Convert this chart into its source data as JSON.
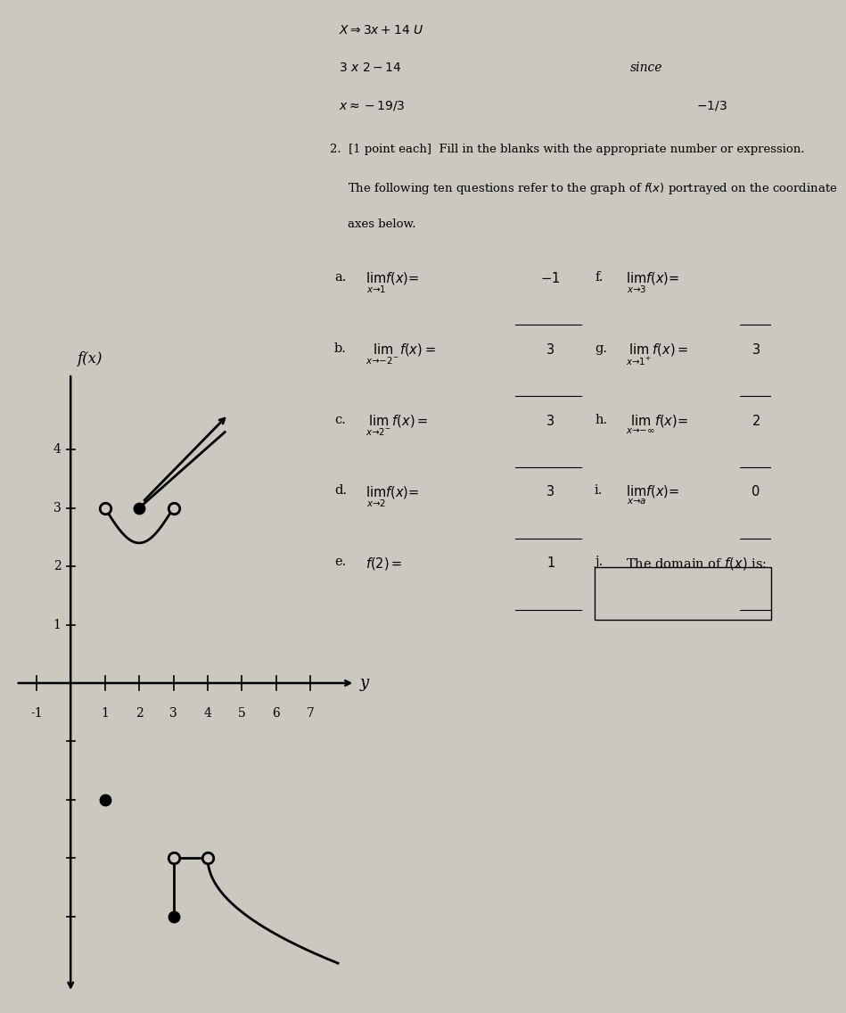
{
  "bg_color": "#ccc8c0",
  "graph_open_circles": [
    [
      1,
      3
    ],
    [
      3,
      3
    ],
    [
      3,
      -3
    ],
    [
      4,
      -3
    ]
  ],
  "graph_closed_circles": [
    [
      2,
      3
    ],
    [
      3,
      -4
    ],
    [
      1,
      -2
    ]
  ],
  "xlim": [
    -1.8,
    8.5
  ],
  "ylim": [
    -5.5,
    5.5
  ],
  "x_ticks_positive": [
    1,
    2,
    3,
    4,
    5,
    6,
    7
  ],
  "x_ticks_negative": [
    -1
  ],
  "y_ticks_positive": [
    1,
    2,
    3,
    4
  ],
  "y_ticks_negative": [
    -1,
    -2,
    -3,
    -4
  ],
  "header1": "$X \\Rightarrow 3x + 14\\ U$",
  "header2": "$3\\ x\\ 2 - 14$",
  "header3": "$x \\approx -19/3$",
  "since_text": "since",
  "since_note": "$-1/3$",
  "q2_text1": "2.  [1 point each]  Fill in the blanks with the appropriate number or expression.",
  "q2_text2": "The following ten questions refer to the graph of $f(x)$ portrayed on the coordinate",
  "q2_text3": "axes below.",
  "parts_left": [
    [
      "a.",
      "$\\lim_{x \\to 1} f(x) =$",
      "$-1$"
    ],
    [
      "b.",
      "$\\lim_{x \\to -2^{-}} f(x) =$",
      "$3$"
    ],
    [
      "c.",
      "$\\lim_{x \\to 2^{-}} f(x) =$",
      "$3$"
    ],
    [
      "d.",
      "$\\lim_{x \\to 2} f(x) =$",
      "$3$"
    ],
    [
      "e.",
      "$f(2) =$",
      "$1$"
    ]
  ],
  "parts_right": [
    [
      "f.",
      "$\\lim_{x \\to 3} f(x) =$",
      ""
    ],
    [
      "g.",
      "$\\lim_{x \\to 1^{+}} f(x) =$",
      "$3$"
    ],
    [
      "h.",
      "$\\lim_{x \\to -\\infty} f(x) =$",
      "$2$"
    ],
    [
      "i.",
      "$\\lim_{x \\to a} f(x) =$",
      "$0$"
    ],
    [
      "j.",
      "The domain of $f(x)$ is:",
      ""
    ]
  ],
  "xaxis_label": "y",
  "yaxis_label": "f(x)"
}
